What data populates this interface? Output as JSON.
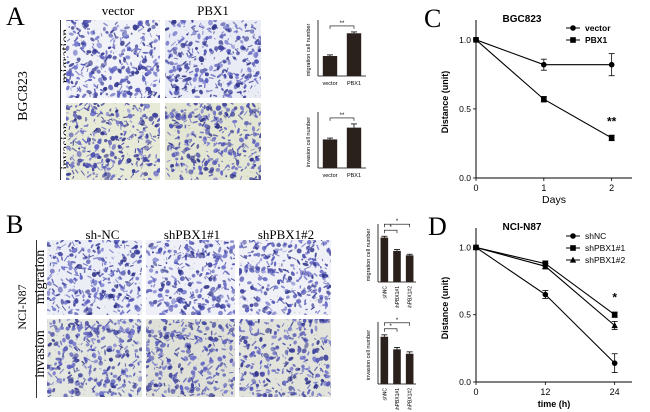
{
  "panels": {
    "A": {
      "letter": "A",
      "cell_line": "BGC823",
      "columns": [
        "vector",
        "PBX1"
      ],
      "rows": [
        "migration",
        "invasion"
      ]
    },
    "B": {
      "letter": "B",
      "cell_line": "NCI-N87",
      "columns": [
        "sh-NC",
        "shPBX1#1",
        "shPBX1#2"
      ],
      "rows": [
        "migration",
        "invasion"
      ]
    },
    "C": {
      "letter": "C"
    },
    "D": {
      "letter": "D"
    }
  },
  "chart_data": [
    {
      "id": "A-migration",
      "type": "bar",
      "categories": [
        "vector",
        "PBX1"
      ],
      "values": [
        180,
        385
      ],
      "errors": [
        10,
        12
      ],
      "ylabel": "migration cell number",
      "significance": [
        {
          "between": [
            0,
            1
          ],
          "label": "**"
        }
      ],
      "color": "#2b211c"
    },
    {
      "id": "A-invasion",
      "type": "bar",
      "categories": [
        "vector",
        "PBX1"
      ],
      "values": [
        85,
        120
      ],
      "errors": [
        4,
        11
      ],
      "ylabel": "invasion cell number",
      "significance": [
        {
          "between": [
            0,
            1
          ],
          "label": "**"
        }
      ],
      "color": "#2b211c"
    },
    {
      "id": "B-migration",
      "type": "bar",
      "categories": [
        "shNC",
        "shPBX1#1",
        "shPBX1#2"
      ],
      "values": [
        200,
        140,
        120
      ],
      "errors": [
        6,
        6,
        5
      ],
      "ylabel": "migration cell number",
      "significance": [
        {
          "between": [
            0,
            1
          ],
          "label": "*"
        },
        {
          "between": [
            0,
            2
          ],
          "label": "*"
        }
      ],
      "color": "#2b211c"
    },
    {
      "id": "B-invasion",
      "type": "bar",
      "categories": [
        "shNC",
        "shPBX1#1",
        "shPBX1#2"
      ],
      "values": [
        75,
        55,
        48
      ],
      "errors": [
        3,
        3,
        3
      ],
      "ylabel": "invasion cell number",
      "significance": [
        {
          "between": [
            0,
            1
          ],
          "label": "*"
        },
        {
          "between": [
            0,
            2
          ],
          "label": "*"
        }
      ],
      "color": "#2b211c"
    },
    {
      "id": "C",
      "type": "line",
      "title": "BGC823",
      "xlabel": "Days",
      "ylabel": "Distance (unit)",
      "x": [
        0,
        1,
        2
      ],
      "xticks": [
        "0",
        "1",
        "2"
      ],
      "yticks": [
        "0.0",
        "0.5",
        "1.0"
      ],
      "xlim": [
        0,
        2.3
      ],
      "ylim": [
        0,
        1.1
      ],
      "series": [
        {
          "name": "vector",
          "marker": "circle",
          "values": [
            1.0,
            0.82,
            0.82
          ],
          "errors": [
            0,
            0.04,
            0.08
          ]
        },
        {
          "name": "PBX1",
          "marker": "square",
          "values": [
            1.0,
            0.57,
            0.29
          ],
          "errors": [
            0,
            0.02,
            0.02
          ]
        }
      ],
      "annotations": [
        {
          "x": 2,
          "y": 0.38,
          "label": "**"
        }
      ],
      "legend": "top-right"
    },
    {
      "id": "D",
      "type": "line",
      "title": "NCI-N87",
      "xlabel": "time (h)",
      "ylabel": "Distance (unit)",
      "x": [
        0,
        12,
        24
      ],
      "xticks": [
        "0",
        "12",
        "24"
      ],
      "yticks": [
        "0.0",
        "0.5",
        "1.0"
      ],
      "xlim": [
        0,
        27
      ],
      "ylim": [
        0,
        1.1
      ],
      "series": [
        {
          "name": "shNC",
          "marker": "circle",
          "values": [
            1.0,
            0.65,
            0.14
          ],
          "errors": [
            0,
            0.03,
            0.07
          ]
        },
        {
          "name": "shPBX1#1",
          "marker": "square",
          "values": [
            1.0,
            0.88,
            0.5
          ],
          "errors": [
            0,
            0.02,
            0.02
          ]
        },
        {
          "name": "shPBX1#2",
          "marker": "triangle",
          "values": [
            1.0,
            0.86,
            0.42
          ],
          "errors": [
            0,
            0.02,
            0.03
          ]
        }
      ],
      "annotations": [
        {
          "x": 24,
          "y": 0.6,
          "label": "*"
        }
      ],
      "legend": "top-right"
    }
  ]
}
